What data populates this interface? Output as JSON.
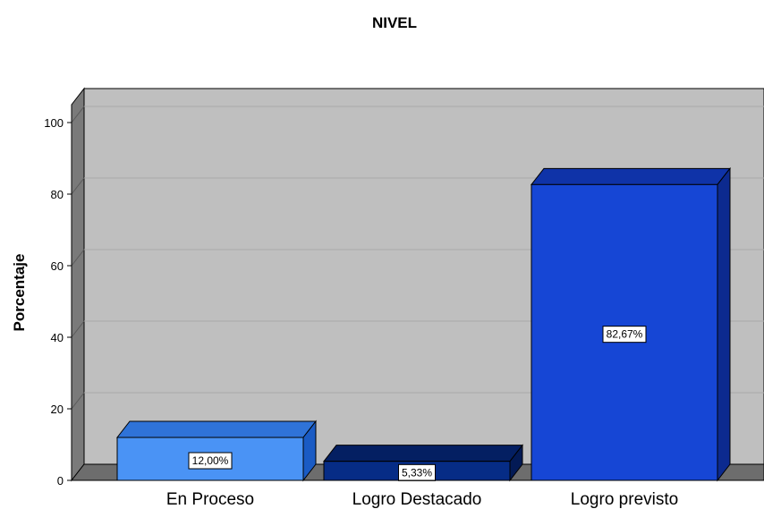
{
  "chart_data": {
    "type": "bar",
    "title": "NIVEL",
    "xlabel": "",
    "ylabel": "Porcentaje",
    "categories": [
      "En Proceso",
      "Logro Destacado",
      "Logro previsto"
    ],
    "values": [
      12.0,
      5.33,
      82.67
    ],
    "data_labels": [
      "12,00%",
      "5,33%",
      "82,67%"
    ],
    "yticks": [
      "0",
      "20",
      "40",
      "60",
      "80",
      "100"
    ],
    "ytick_values": [
      0,
      20,
      40,
      60,
      80,
      100
    ],
    "ylim": [
      0,
      105
    ],
    "grid": true,
    "style": "3d",
    "colors": {
      "bar_fronts": [
        "#4a93f5",
        "#062c86",
        "#1646d5"
      ],
      "bar_tops": [
        "#2f73d8",
        "#041f62",
        "#0f33a8"
      ],
      "bar_sides": [
        "#1a5bc4",
        "#031a55",
        "#0c2a8f"
      ],
      "plot_background": "#bfbfbf",
      "back_wall_left": "#7a7a7a",
      "floor": "#6d6d6d",
      "gridline": "#a8a8a8"
    }
  }
}
